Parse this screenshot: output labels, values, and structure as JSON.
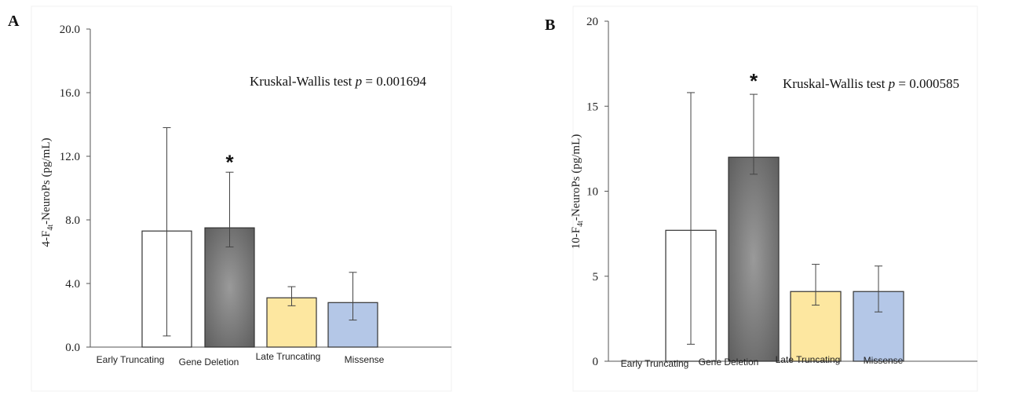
{
  "chart_data": [
    {
      "type": "bar",
      "panel_label": "A",
      "categories": [
        "Early Truncating",
        "Gene Deletion",
        "Late Truncating",
        "Missense"
      ],
      "values": [
        7.3,
        7.5,
        3.1,
        2.8
      ],
      "error_low": [
        0.7,
        6.3,
        2.6,
        1.7
      ],
      "error_high": [
        13.8,
        11.0,
        3.8,
        4.7
      ],
      "ylabel_prefix": "4-F",
      "ylabel_sub": "4t",
      "ylabel_suffix": "-NeuroPs (pg/mL)",
      "ylim": [
        0,
        20
      ],
      "yticks": [
        "0.0",
        "4.0",
        "8.0",
        "12.0",
        "16.0",
        "20.0"
      ],
      "ytick_values": [
        0,
        4,
        8,
        12,
        16,
        20
      ],
      "annotation_text": "Kruskal-Wallis test ",
      "annotation_p": "p",
      "annotation_value": " = 0.001694",
      "significance_marker": "*",
      "significant_index": 1,
      "colors": [
        "#ffffff",
        "#7a7a7a",
        "#fde7a0",
        "#b4c7e7"
      ],
      "grid": false
    },
    {
      "type": "bar",
      "panel_label": "B",
      "categories": [
        "Early Truncating",
        "Gene Deletion",
        "Late Truncating",
        "Missense"
      ],
      "values": [
        7.7,
        12.0,
        4.1,
        4.1
      ],
      "error_low": [
        1.0,
        11.0,
        3.3,
        2.9
      ],
      "error_high": [
        15.8,
        15.7,
        5.7,
        5.6
      ],
      "ylabel_prefix": "10-F",
      "ylabel_sub": "4t",
      "ylabel_suffix": "-NeuroPs (pg/mL)",
      "ylim": [
        0,
        20
      ],
      "yticks": [
        "0",
        "5",
        "10",
        "15",
        "20"
      ],
      "ytick_values": [
        0,
        5,
        10,
        15,
        20
      ],
      "annotation_text": "Kruskal-Wallis test ",
      "annotation_p": "p",
      "annotation_value": " = 0.000585",
      "significance_marker": "*",
      "significant_index": 1,
      "colors": [
        "#ffffff",
        "#7a7a7a",
        "#fde7a0",
        "#b4c7e7"
      ],
      "grid": false
    }
  ]
}
